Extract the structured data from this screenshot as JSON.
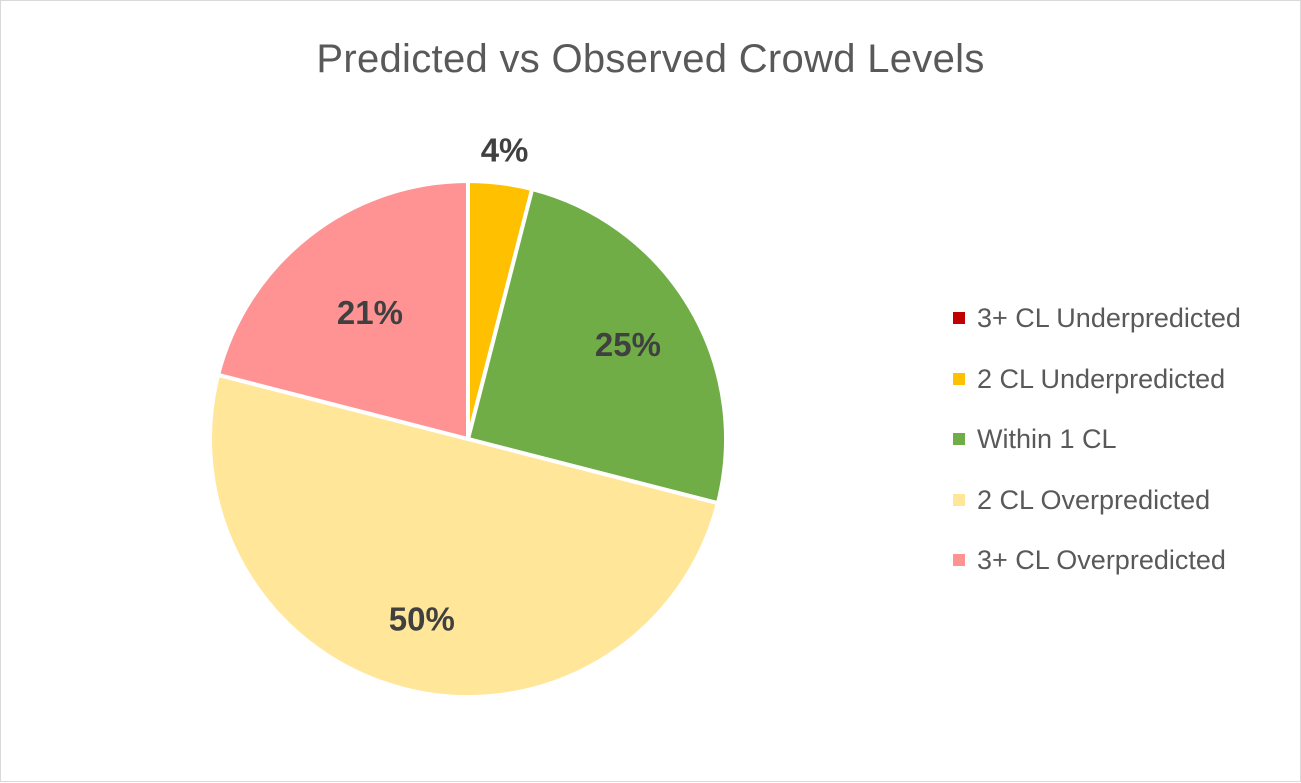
{
  "chart_data": {
    "type": "pie",
    "title": "Predicted vs Observed Crowd Levels",
    "slices": [
      {
        "name": "3+ CL Underpredicted",
        "value": 0,
        "label": "",
        "color": "#C00000"
      },
      {
        "name": "2 CL Underpredicted",
        "value": 4,
        "label": "4%",
        "color": "#FFC000"
      },
      {
        "name": "Within 1 CL",
        "value": 25,
        "label": "25%",
        "color": "#70AD47"
      },
      {
        "name": "2 CL Overpredicted",
        "value": 50,
        "label": "50%",
        "color": "#FFE699"
      },
      {
        "name": "3+ CL Overpredicted",
        "value": 21,
        "label": "21%",
        "color": "#FF9393"
      }
    ],
    "legend_position": "right"
  }
}
